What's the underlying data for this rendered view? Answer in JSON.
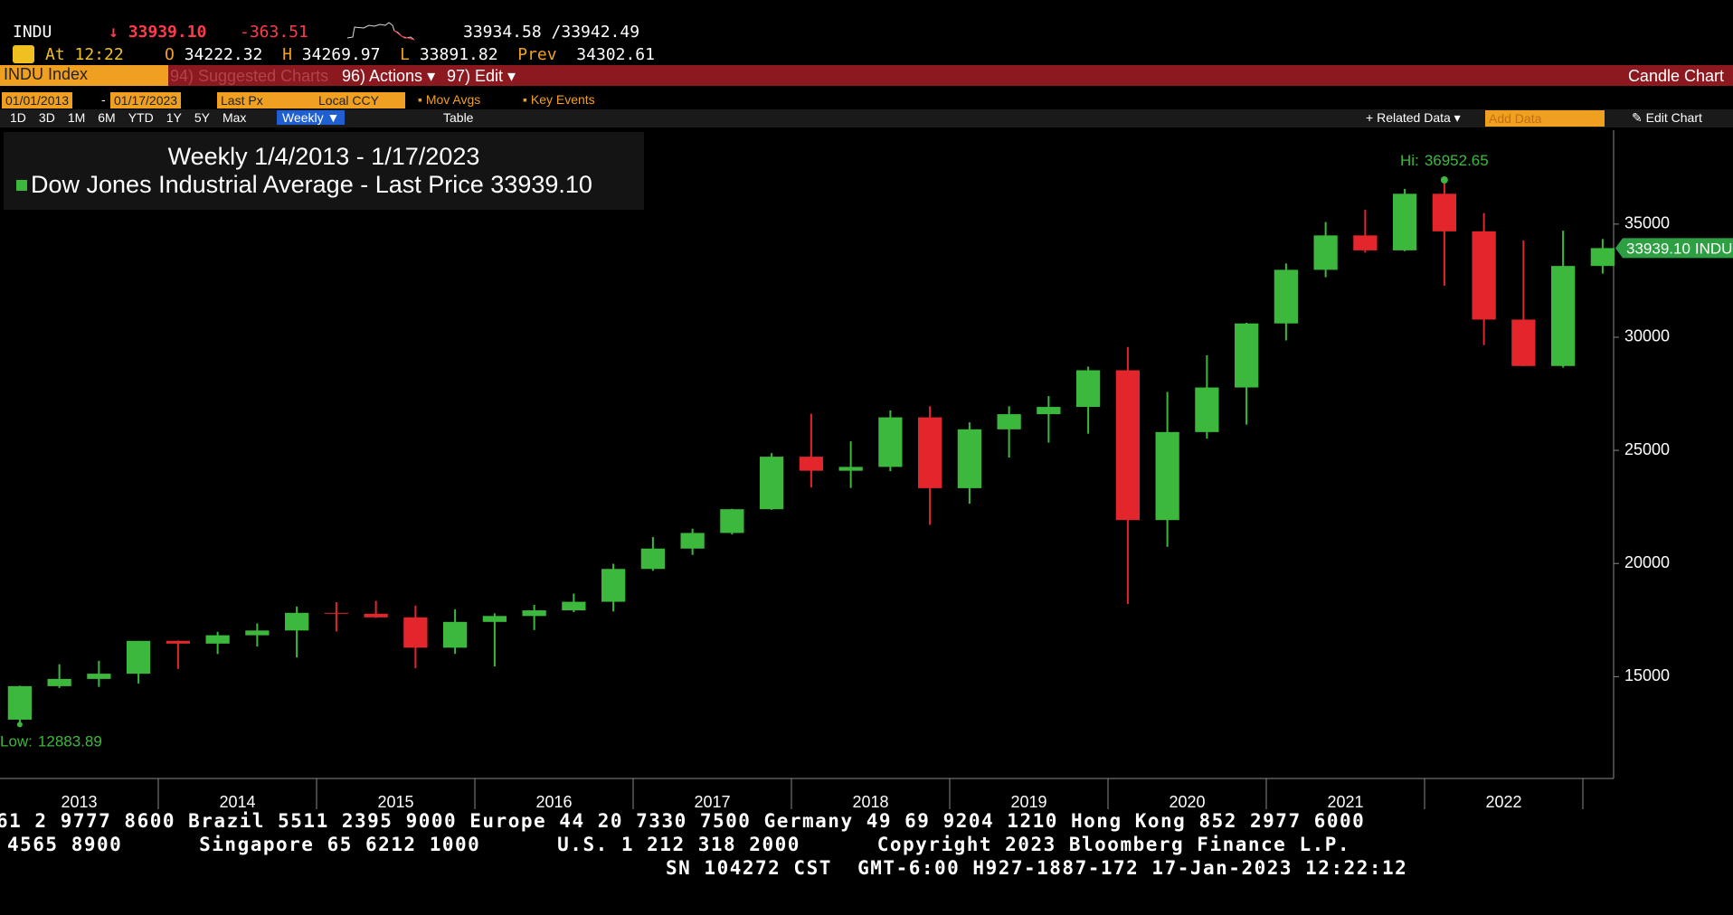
{
  "header": {
    "symbol": "INDU",
    "last": "33939.10",
    "change": "-363.51",
    "bid_ask": "33934.58 /33942.49",
    "time": "At 12:22",
    "open_label": "O",
    "open": "34222.32",
    "high_label": "H",
    "high": "34269.97",
    "low_label": "L",
    "low": "33891.82",
    "prev_label": "Prev",
    "prev": "34302.61"
  },
  "menu": {
    "security": "INDU Index",
    "items": [
      "94) Suggested Charts",
      "96) Actions",
      "97) Edit"
    ],
    "view": "Candle Chart"
  },
  "toolbar": {
    "start": "01/01/2013",
    "end": "01/17/2023",
    "field": "Last Px",
    "currency": "Local CCY",
    "options": [
      "Mov Avgs",
      "Key Events"
    ],
    "ranges": [
      "1D",
      "3D",
      "1M",
      "6M",
      "YTD",
      "1Y",
      "5Y",
      "Max"
    ],
    "period": "Weekly",
    "table": "Table",
    "related": "Related Data",
    "add": "Add Data",
    "edit": "Edit Chart"
  },
  "chart_data": {
    "type": "candlestick",
    "title": "Weekly 1/4/2013 - 1/17/2023",
    "series_name": "Dow Jones Industrial Average - Last Price",
    "last_price": {
      "value": 33939.1,
      "label": "33939.10"
    },
    "last_tag": "INDU",
    "up_color": "#3cb93c",
    "down_color": "#e3262b",
    "open": [
      13100,
      14580,
      14900,
      15130,
      16580,
      16460,
      16830,
      17040,
      17820,
      17780,
      17620,
      16280,
      17420,
      17680,
      17930,
      18310,
      19760,
      20660,
      21350,
      22400,
      24720,
      24100,
      24270,
      26460,
      23330,
      25930,
      26600,
      26920,
      28540,
      21920,
      25810,
      27780,
      30610,
      32980,
      34500,
      33840,
      36340,
      34680,
      30780,
      28730,
      33150
    ],
    "high": [
      14600,
      15550,
      15700,
      16580,
      16600,
      16980,
      17350,
      18100,
      18290,
      18350,
      18140,
      17980,
      17800,
      18170,
      18670,
      19990,
      21170,
      21540,
      22420,
      24880,
      26620,
      25400,
      26770,
      26950,
      26240,
      26950,
      27400,
      28700,
      29570,
      27580,
      29200,
      30640,
      33260,
      35090,
      35630,
      36560,
      36952.65,
      35490,
      34280,
      34710,
      34340
    ],
    "low": [
      12883.89,
      14500,
      14550,
      14700,
      15340,
      16000,
      16330,
      15850,
      17000,
      17600,
      15370,
      16010,
      15450,
      17060,
      17850,
      17880,
      19680,
      20380,
      21280,
      22370,
      23360,
      23340,
      24080,
      21710,
      22640,
      24680,
      25340,
      25740,
      18210,
      20740,
      25520,
      26140,
      29860,
      32650,
      33740,
      33800,
      32270,
      29650,
      28720,
      28660,
      32810
    ],
    "close": [
      14580,
      14900,
      15130,
      16580,
      16460,
      16830,
      17040,
      17820,
      17780,
      17620,
      16280,
      17420,
      17680,
      17930,
      18310,
      19760,
      20660,
      21350,
      22400,
      24720,
      24100,
      24270,
      26460,
      23330,
      25930,
      26600,
      26920,
      28540,
      21920,
      25810,
      27780,
      30610,
      32980,
      34500,
      33840,
      36340,
      34680,
      30780,
      28730,
      33150,
      33939.1
    ],
    "x_labels": [
      2013,
      2014,
      2015,
      2016,
      2017,
      2018,
      2019,
      2020,
      2021,
      2022
    ],
    "ylim": [
      10500,
      39150
    ],
    "yticks": [
      15000,
      20000,
      25000,
      30000,
      35000
    ],
    "grid": false,
    "hi": {
      "label": "Hi:",
      "value": 36952.65
    },
    "low_mark": {
      "label": "Low:",
      "value": 12883.89
    }
  },
  "footer": {
    "lines": [
      "61 2 9777 8600 Brazil 5511 2395 9000 Europe 44 20 7330 7500 Germany 49 69 9204 1210 Hong Kong 852 2977 6000",
      "4565 8900      Singapore 65 6212 1000      U.S. 1 212 318 2000      Copyright 2023 Bloomberg Finance L.P.",
      "SN 104272 CST  GMT-6:00 H927-1887-172 17-Jan-2023 12:22:12"
    ]
  }
}
